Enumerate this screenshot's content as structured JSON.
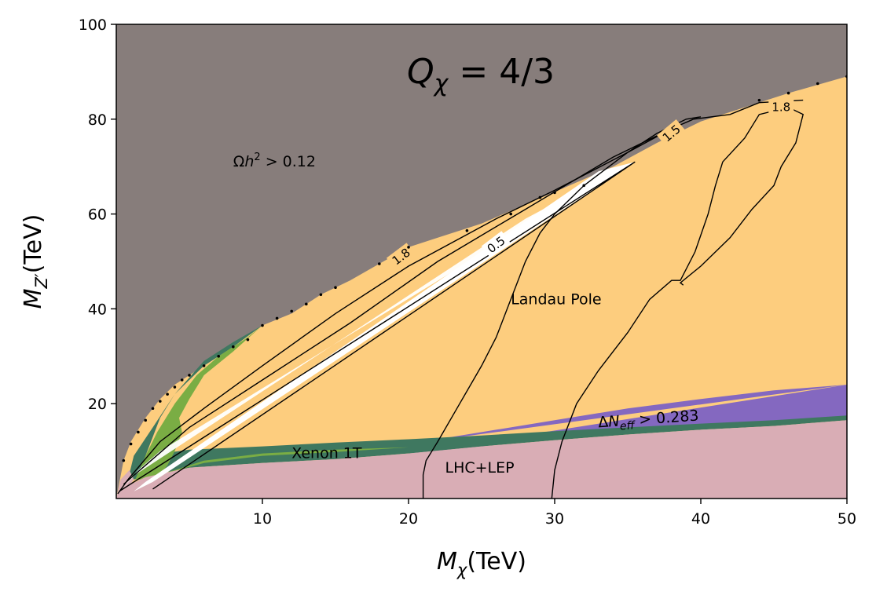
{
  "chart_data": {
    "type": "contour",
    "title_main": "Q",
    "title_sub": "χ",
    "title_rest": " = 4/3",
    "xlabel_main": "M",
    "xlabel_sub": "χ",
    "xlabel_rest": "(TeV)",
    "ylabel_main": "M",
    "ylabel_sub": "Z′",
    "ylabel_rest": "(TeV)",
    "xlim": [
      0,
      50
    ],
    "ylim": [
      0,
      100
    ],
    "xticks": [
      10,
      20,
      30,
      40,
      50
    ],
    "yticks": [
      20,
      40,
      60,
      80,
      100
    ],
    "colors": {
      "relic_excluded": "#877d7b",
      "landau_pole": "#fdcd7e",
      "delta_neff": "#8468c0",
      "lhc_lep": "#d9adb5",
      "xenon_dark": "#3f7860",
      "xenon_light": "#7aad44",
      "allowed": "#ffffff"
    },
    "regions": [
      {
        "label": "Ωh² > 0.12",
        "label_pos": [
          8,
          70
        ],
        "color": "#877d7b"
      },
      {
        "label": "Landau Pole",
        "label_pos": [
          27,
          41
        ],
        "color": "#fdcd7e"
      },
      {
        "label": "ΔN_eff > 0.283",
        "label_pos": [
          33,
          15
        ],
        "color": "#8468c0"
      },
      {
        "label": "Xenon 1T",
        "label_pos": [
          12,
          8.5
        ],
        "color": "#3f7860"
      },
      {
        "label": "LHC+LEP",
        "label_pos": [
          22.5,
          5.5
        ],
        "color": "#d9adb5"
      }
    ],
    "relic_boundary": [
      [
        0,
        0
      ],
      [
        0.5,
        8
      ],
      [
        1,
        12
      ],
      [
        2,
        17
      ],
      [
        3,
        21
      ],
      [
        4,
        24
      ],
      [
        6,
        28
      ],
      [
        8,
        32
      ],
      [
        10,
        36.5
      ],
      [
        12,
        39
      ],
      [
        14,
        43
      ],
      [
        16,
        46
      ],
      [
        18,
        49.5
      ],
      [
        20,
        53
      ],
      [
        22,
        55
      ],
      [
        25,
        58
      ],
      [
        28,
        62
      ],
      [
        31,
        66
      ],
      [
        34,
        70
      ],
      [
        37,
        75
      ],
      [
        40,
        79.5
      ],
      [
        43,
        82.5
      ],
      [
        46,
        85.5
      ],
      [
        50,
        89
      ]
    ],
    "relic_dots": [
      [
        0.5,
        8
      ],
      [
        1,
        11.5
      ],
      [
        1.5,
        14
      ],
      [
        2,
        16.5
      ],
      [
        2.5,
        19
      ],
      [
        3,
        20.5
      ],
      [
        3.5,
        22
      ],
      [
        4,
        23.5
      ],
      [
        4.5,
        25
      ],
      [
        5,
        26
      ],
      [
        6,
        28
      ],
      [
        7,
        30
      ],
      [
        8,
        32
      ],
      [
        9,
        33.5
      ],
      [
        10,
        36.5
      ],
      [
        11,
        38
      ],
      [
        12,
        39.5
      ],
      [
        13,
        41
      ],
      [
        14,
        43
      ],
      [
        15,
        44.5
      ],
      [
        18,
        49.5
      ],
      [
        20,
        53
      ],
      [
        24,
        56.5
      ],
      [
        27,
        60
      ],
      [
        29,
        63.5
      ],
      [
        30,
        64.5
      ],
      [
        32,
        66
      ],
      [
        44,
        84
      ],
      [
        46,
        85.5
      ],
      [
        48,
        87.5
      ],
      [
        50,
        89
      ]
    ],
    "neff_lower": [
      [
        20,
        9.5
      ],
      [
        25,
        11
      ],
      [
        30,
        12.5
      ],
      [
        35,
        14
      ],
      [
        40,
        15.3
      ],
      [
        45,
        16.3
      ],
      [
        50,
        17.3
      ]
    ],
    "neff_upper": [
      [
        20,
        11.5
      ],
      [
        25,
        14
      ],
      [
        30,
        16.5
      ],
      [
        35,
        19
      ],
      [
        40,
        21
      ],
      [
        45,
        22.8
      ],
      [
        50,
        24
      ]
    ],
    "lhc_upper": [
      [
        1,
        5
      ],
      [
        5,
        6.5
      ],
      [
        10,
        7.5
      ],
      [
        15,
        8.3
      ],
      [
        20,
        9.5
      ],
      [
        25,
        11
      ],
      [
        30,
        12.3
      ],
      [
        35,
        13.5
      ],
      [
        40,
        14.5
      ],
      [
        45,
        15.3
      ],
      [
        50,
        16.5
      ]
    ],
    "xenon_upper": [
      [
        1,
        8
      ],
      [
        3,
        9.5
      ],
      [
        7,
        10
      ],
      [
        12,
        10.5
      ],
      [
        20,
        11.5
      ]
    ],
    "allowed_band": [
      [
        1.5,
        2
      ],
      [
        2.5,
        4.5
      ],
      [
        35.5,
        71
      ],
      [
        34,
        70.5
      ],
      [
        2,
        3
      ]
    ],
    "contours": [
      {
        "level": "0.5",
        "label_pos": [
          26,
          53.5
        ],
        "label_rotation": -37,
        "points": [
          [
            2.5,
            2
          ],
          [
            35.5,
            71
          ],
          [
            0.2,
            1.5
          ]
        ]
      },
      {
        "level": "1.8",
        "label_pos": [
          19.5,
          51
        ],
        "label_rotation": -37,
        "points": [
          [
            0.1,
            1
          ],
          [
            0.8,
            4
          ],
          [
            3,
            12
          ],
          [
            6,
            19
          ],
          [
            10,
            28
          ],
          [
            15,
            39
          ],
          [
            20,
            49
          ],
          [
            26,
            59
          ],
          [
            30,
            65
          ],
          [
            35,
            73
          ],
          [
            38,
            78
          ]
        ]
      },
      {
        "level": "1.5",
        "label_pos": [
          38,
          77
        ],
        "label_rotation": -40,
        "points": [
          [
            0.5,
            3
          ],
          [
            2,
            7
          ],
          [
            5,
            15
          ],
          [
            10,
            25
          ],
          [
            16,
            37
          ],
          [
            22,
            50
          ],
          [
            28,
            61
          ],
          [
            34,
            72
          ],
          [
            38,
            78
          ],
          [
            39.5,
            80
          ]
        ]
      },
      {
        "level": "1.8",
        "label_pos": [
          45.5,
          82.5
        ],
        "label_rotation": 0,
        "points": [
          [
            39.5,
            80
          ],
          [
            42,
            81
          ],
          [
            44,
            83.5
          ],
          [
            47,
            84
          ]
        ]
      }
    ],
    "vertical_contours": [
      {
        "points": [
          [
            21,
            0
          ],
          [
            21,
            5
          ],
          [
            21.2,
            8
          ],
          [
            22,
            12
          ],
          [
            23.5,
            20
          ],
          [
            25,
            28
          ],
          [
            26,
            34
          ],
          [
            27,
            42
          ],
          [
            28,
            50
          ],
          [
            29,
            56
          ],
          [
            30,
            60
          ],
          [
            32,
            66
          ],
          [
            35,
            73
          ],
          [
            37,
            77
          ],
          [
            39,
            80
          ],
          [
            40,
            80.5
          ]
        ]
      },
      {
        "points": [
          [
            29.8,
            0
          ],
          [
            30,
            6
          ],
          [
            30.5,
            12
          ],
          [
            31.5,
            20
          ],
          [
            33,
            27
          ],
          [
            35,
            35
          ],
          [
            36.5,
            42
          ],
          [
            38,
            46
          ],
          [
            38.6,
            46
          ],
          [
            39.6,
            52
          ],
          [
            40.5,
            60
          ],
          [
            41,
            66
          ],
          [
            41.5,
            71
          ],
          [
            43,
            76
          ],
          [
            44,
            81
          ],
          [
            46,
            82.5
          ],
          [
            47,
            81
          ],
          [
            46.5,
            75
          ],
          [
            45.5,
            70
          ],
          [
            45,
            66
          ],
          [
            43.5,
            61
          ],
          [
            42,
            55
          ],
          [
            40,
            49
          ],
          [
            38.6,
            45.5
          ],
          [
            38.8,
            45
          ]
        ]
      }
    ]
  }
}
